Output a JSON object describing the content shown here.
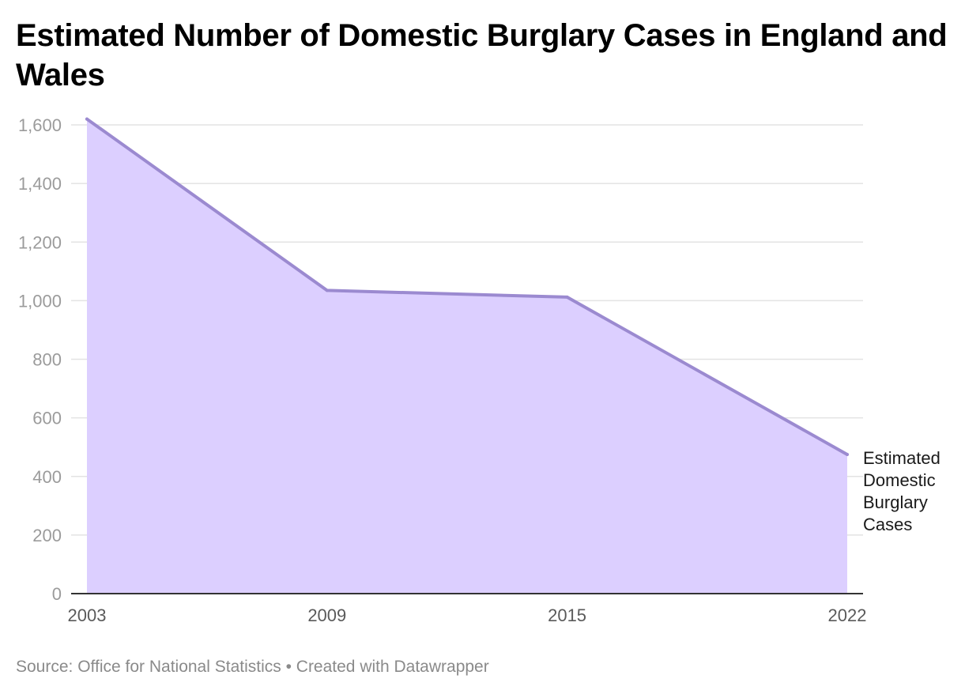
{
  "chart_data": {
    "type": "area",
    "title": "Estimated Number of Domestic Burglary Cases in England and Wales",
    "x": [
      "2003",
      "2009",
      "2015",
      "2022"
    ],
    "series": [
      {
        "name": "Estimated Domestic Burglary Cases",
        "values": [
          1620,
          1035,
          1012,
          475
        ]
      }
    ],
    "yticks": [
      "0",
      "200",
      "400",
      "600",
      "800",
      "1,000",
      "1,200",
      "1,400",
      "1,600"
    ],
    "ylim": [
      0,
      1600
    ],
    "grid": true,
    "legend": "inline-right",
    "colors": {
      "fill": "#dccfff",
      "line": "#9b8ad0",
      "grid": "#e3e3e3",
      "baseline": "#333333"
    }
  },
  "footer": {
    "source": "Source: Office for National Statistics • Created with Datawrapper"
  }
}
